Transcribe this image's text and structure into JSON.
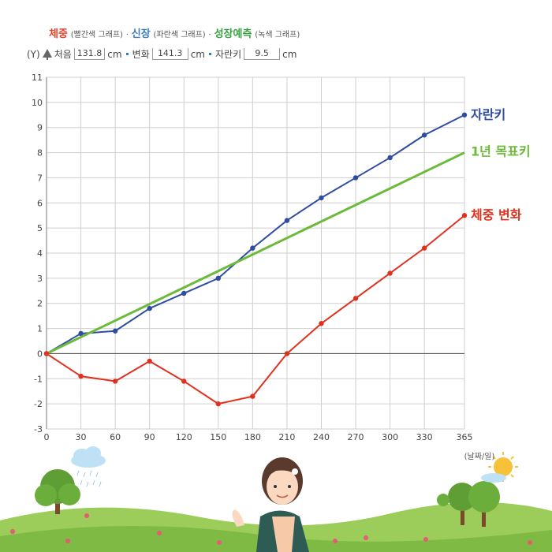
{
  "legend": {
    "weight_label": "체중",
    "weight_note": "(빨간색 그래프)",
    "height_label": "신장",
    "height_note": "(파란색 그래프)",
    "forecast_label": "성장예측",
    "forecast_note": "(녹색 그래프)",
    "separator": "·"
  },
  "info": {
    "y_axis_tag": "(Y)",
    "start_label": "처음",
    "start_value": "131.8",
    "unit": "cm",
    "change_label": "변화",
    "change_value": "141.3",
    "grown_label": "자란키",
    "grown_value": "9.5"
  },
  "colors": {
    "height": "#2f4da0",
    "forecast": "#6cba3a",
    "weight": "#e0311f",
    "grid": "#cfcfcf",
    "zero_line": "#555555"
  },
  "chart_data": {
    "type": "line",
    "x": [
      0,
      30,
      60,
      90,
      120,
      150,
      180,
      210,
      240,
      270,
      300,
      330,
      365
    ],
    "xlabel": "(날짜/일)",
    "ylabel": "",
    "xlim": [
      0,
      365
    ],
    "ylim": [
      -3,
      11
    ],
    "x_ticks": [
      0,
      30,
      60,
      90,
      120,
      150,
      180,
      210,
      240,
      270,
      300,
      330,
      365
    ],
    "y_ticks": [
      -3,
      -2,
      -1,
      0,
      1,
      2,
      3,
      4,
      5,
      6,
      7,
      8,
      9,
      10,
      11
    ],
    "grid": true,
    "series": [
      {
        "name": "자란키",
        "color": "#2f4da0",
        "values": [
          0,
          0.8,
          0.9,
          1.8,
          2.4,
          3.0,
          4.2,
          5.3,
          6.2,
          7.0,
          7.8,
          8.7,
          9.5
        ],
        "markers": true
      },
      {
        "name": "1년 목표키",
        "color": "#6cba3a",
        "x": [
          0,
          365
        ],
        "values": [
          0,
          8.0
        ],
        "markers": false
      },
      {
        "name": "체중 변화",
        "color": "#e0311f",
        "values": [
          0,
          -0.9,
          -1.1,
          -0.3,
          -1.1,
          -2.0,
          -1.7,
          0,
          1.2,
          2.2,
          3.2,
          4.2,
          5.5
        ],
        "markers": true
      }
    ]
  }
}
